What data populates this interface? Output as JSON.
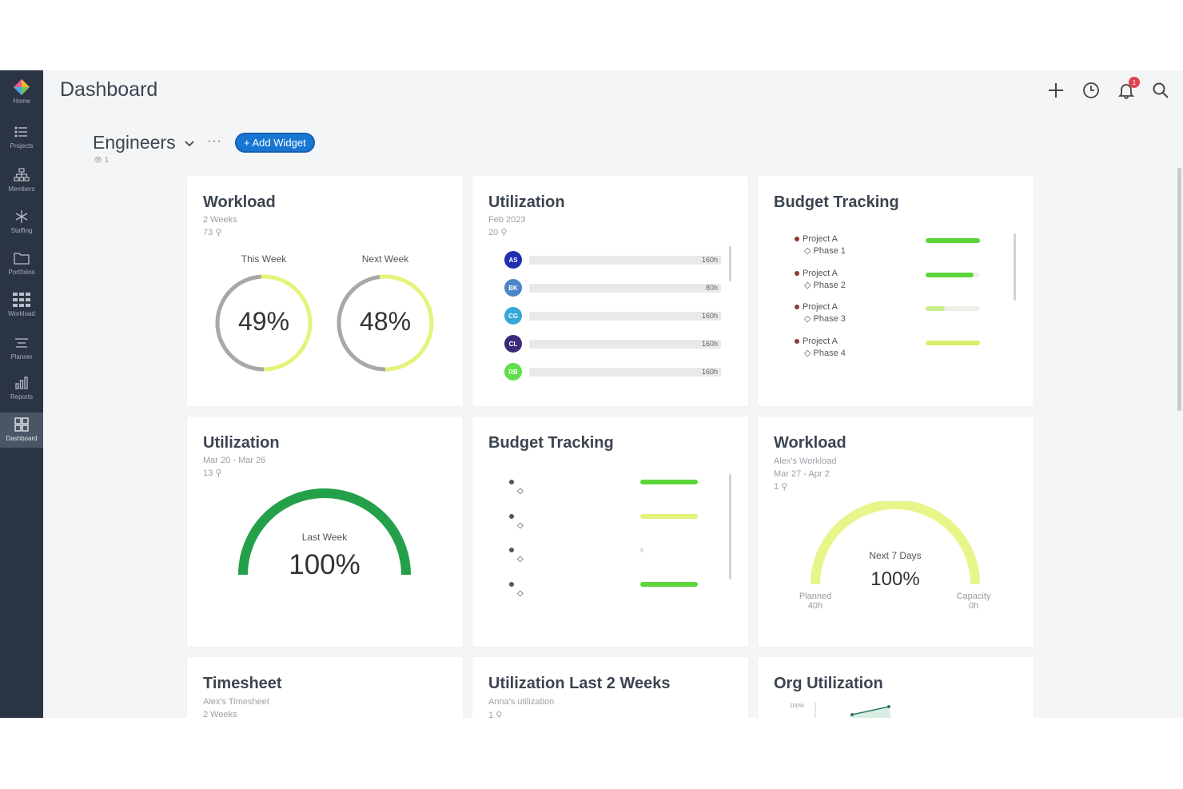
{
  "header": {
    "title": "Dashboard",
    "notification_count": "1"
  },
  "sidebar": {
    "items": [
      {
        "label": "Home",
        "icon": "logo-icon"
      },
      {
        "label": "Projects",
        "icon": "list-icon"
      },
      {
        "label": "Members",
        "icon": "org-chart-icon"
      },
      {
        "label": "Staffing",
        "icon": "asterisk-icon"
      },
      {
        "label": "Portfolios",
        "icon": "folder-icon"
      },
      {
        "label": "Workload",
        "icon": "grid-icon"
      },
      {
        "label": "Planner",
        "icon": "planner-icon"
      },
      {
        "label": "Reports",
        "icon": "bar-chart-icon"
      },
      {
        "label": "Dashboard",
        "icon": "dashboard-icon",
        "active": true
      }
    ]
  },
  "filter": {
    "team": "Engineers",
    "add_widget": "+ Add Widget",
    "viewers": "1"
  },
  "widgets": {
    "workload1": {
      "title": "Workload",
      "range": "2 Weeks",
      "people": "73",
      "this_week_label": "This Week",
      "this_week_value": "49%",
      "this_week_fraction": 0.49,
      "next_week_label": "Next Week",
      "next_week_value": "48%",
      "next_week_fraction": 0.48
    },
    "utilization1": {
      "title": "Utilization",
      "range": "Feb 2023",
      "people": "20",
      "rows": [
        {
          "initials": "AS",
          "color": "#1f2fb0",
          "hours": "160h"
        },
        {
          "initials": "BK",
          "color": "#4a86c8",
          "hours": "80h"
        },
        {
          "initials": "CG",
          "color": "#35a8d8",
          "hours": "160h"
        },
        {
          "initials": "CL",
          "color": "#3d2a7a",
          "hours": "160h"
        },
        {
          "initials": "RB",
          "color": "#5ee04a",
          "hours": "160h"
        }
      ]
    },
    "budget1": {
      "title": "Budget Tracking",
      "rows": [
        {
          "project": "Project A",
          "phase": "Phase 1",
          "fill": 1.0,
          "color": "#5cd43a"
        },
        {
          "project": "Project A",
          "phase": "Phase 2",
          "fill": 0.88,
          "color": "#5cd43a"
        },
        {
          "project": "Project A",
          "phase": "Phase 3",
          "fill": 0.35,
          "color": "#c8f08a"
        },
        {
          "project": "Project A",
          "phase": "Phase 4",
          "fill": 1.0,
          "color": "#d8f06a"
        }
      ]
    },
    "utilization2": {
      "title": "Utilization",
      "range": "Mar 20 - Mar 26",
      "people": "13",
      "gauge_label": "Last Week",
      "gauge_value": "100%",
      "gauge_fraction": 1.0,
      "gauge_color": "#24a04a"
    },
    "budget2": {
      "title": "Budget Tracking",
      "fills": [
        1.0,
        1.0,
        0.0,
        1.0
      ],
      "colors": [
        "#5cd43a",
        "#e3f07a",
        "#e3e3e3",
        "#5cd43a"
      ]
    },
    "workload2": {
      "title": "Workload",
      "subtitle": "Alex's Workload",
      "range": "Mar 27 - Apr 2",
      "people": "1",
      "gauge_label": "Next 7 Days",
      "gauge_value": "100%",
      "gauge_color": "#e8f58a",
      "planned_label": "Planned",
      "planned_value": "40h",
      "capacity_label": "Capacity",
      "capacity_value": "0h"
    },
    "timesheet": {
      "title": "Timesheet",
      "subtitle": "Alex's Timesheet",
      "range": "2 Weeks"
    },
    "util_last2": {
      "title": "Utilization Last 2 Weeks",
      "subtitle": "Anna's utilization",
      "people": "1"
    },
    "org_util": {
      "title": "Org Utilization",
      "axis_label": "100%"
    }
  },
  "colors": {
    "donut_done": "#a8a8a8",
    "donut_rest": "#e6f27a",
    "accent": "#1876d2"
  }
}
